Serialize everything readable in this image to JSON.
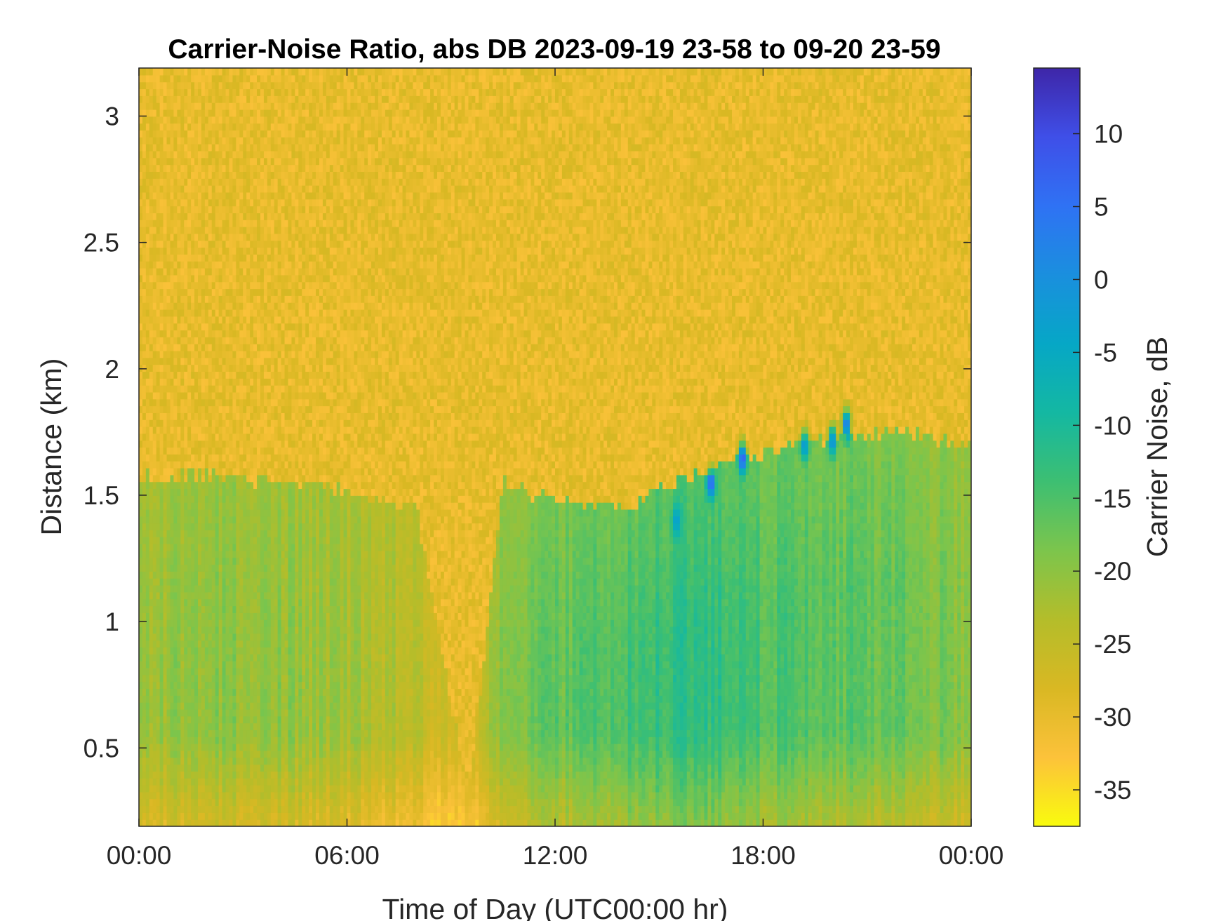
{
  "chart_data": {
    "type": "heatmap",
    "title": "Carrier-Noise Ratio, abs DB 2023-09-19 23-58 to 09-20 23-59",
    "xlabel": "Time of Day (UTC00:00 hr)",
    "ylabel": "Distance (km)",
    "x_ticks": [
      "00:00",
      "06:00",
      "12:00",
      "18:00",
      "00:00"
    ],
    "x_tick_hours": [
      0,
      6,
      12,
      18,
      24
    ],
    "xlim_hours": [
      0,
      24
    ],
    "y_ticks": [
      0.5,
      1,
      1.5,
      2,
      2.5,
      3
    ],
    "ylim": [
      0.19,
      3.19
    ],
    "colorbar": {
      "label": "Carrier Noise, dB",
      "ticks": [
        10,
        5,
        0,
        -5,
        -10,
        -15,
        -20,
        -25,
        -30,
        -35
      ],
      "range": [
        -37.5,
        14.5
      ],
      "colormap": [
        "#f9fb0e",
        "#fcc23a",
        "#d9b823",
        "#b4bd2a",
        "#7cc54c",
        "#3dbf72",
        "#14b8a2",
        "#06a7c6",
        "#1a8fde",
        "#2f72f4",
        "#3f4fe8",
        "#3e26a8"
      ]
    },
    "features": [
      {
        "hour": 0,
        "boundary_km": 1.57,
        "boundary_dB": -21
      },
      {
        "hour": 2,
        "boundary_km": 1.58,
        "boundary_dB": -20
      },
      {
        "hour": 4,
        "boundary_km": 1.55,
        "boundary_dB": -20
      },
      {
        "hour": 6,
        "boundary_km": 1.52,
        "boundary_dB": -22
      },
      {
        "hour": 8,
        "boundary_km": 1.45,
        "boundary_dB": -24
      },
      {
        "hour": 9.5,
        "boundary_km": 0.3,
        "boundary_dB": -28
      },
      {
        "hour": 10.5,
        "boundary_km": 1.55,
        "boundary_dB": -19
      },
      {
        "hour": 12,
        "boundary_km": 1.48,
        "boundary_dB": -17
      },
      {
        "hour": 14,
        "boundary_km": 1.45,
        "boundary_dB": -14
      },
      {
        "hour": 16,
        "boundary_km": 1.58,
        "boundary_dB": -12
      },
      {
        "hour": 18,
        "boundary_km": 1.67,
        "boundary_dB": -15
      },
      {
        "hour": 20,
        "boundary_km": 1.72,
        "boundary_dB": -16
      },
      {
        "hour": 22,
        "boundary_km": 1.75,
        "boundary_dB": -17
      },
      {
        "hour": 24,
        "boundary_km": 1.7,
        "boundary_dB": -20
      }
    ],
    "background_dB": -30,
    "peak_spots": [
      {
        "hour": 16.5,
        "km": 1.55,
        "dB": 8
      },
      {
        "hour": 17.4,
        "km": 1.65,
        "dB": 10
      },
      {
        "hour": 20.4,
        "km": 1.78,
        "dB": 7
      },
      {
        "hour": 19.2,
        "km": 1.7,
        "dB": 0
      },
      {
        "hour": 20.0,
        "km": 1.72,
        "dB": 2
      },
      {
        "hour": 15.5,
        "km": 1.4,
        "dB": -2
      }
    ]
  }
}
